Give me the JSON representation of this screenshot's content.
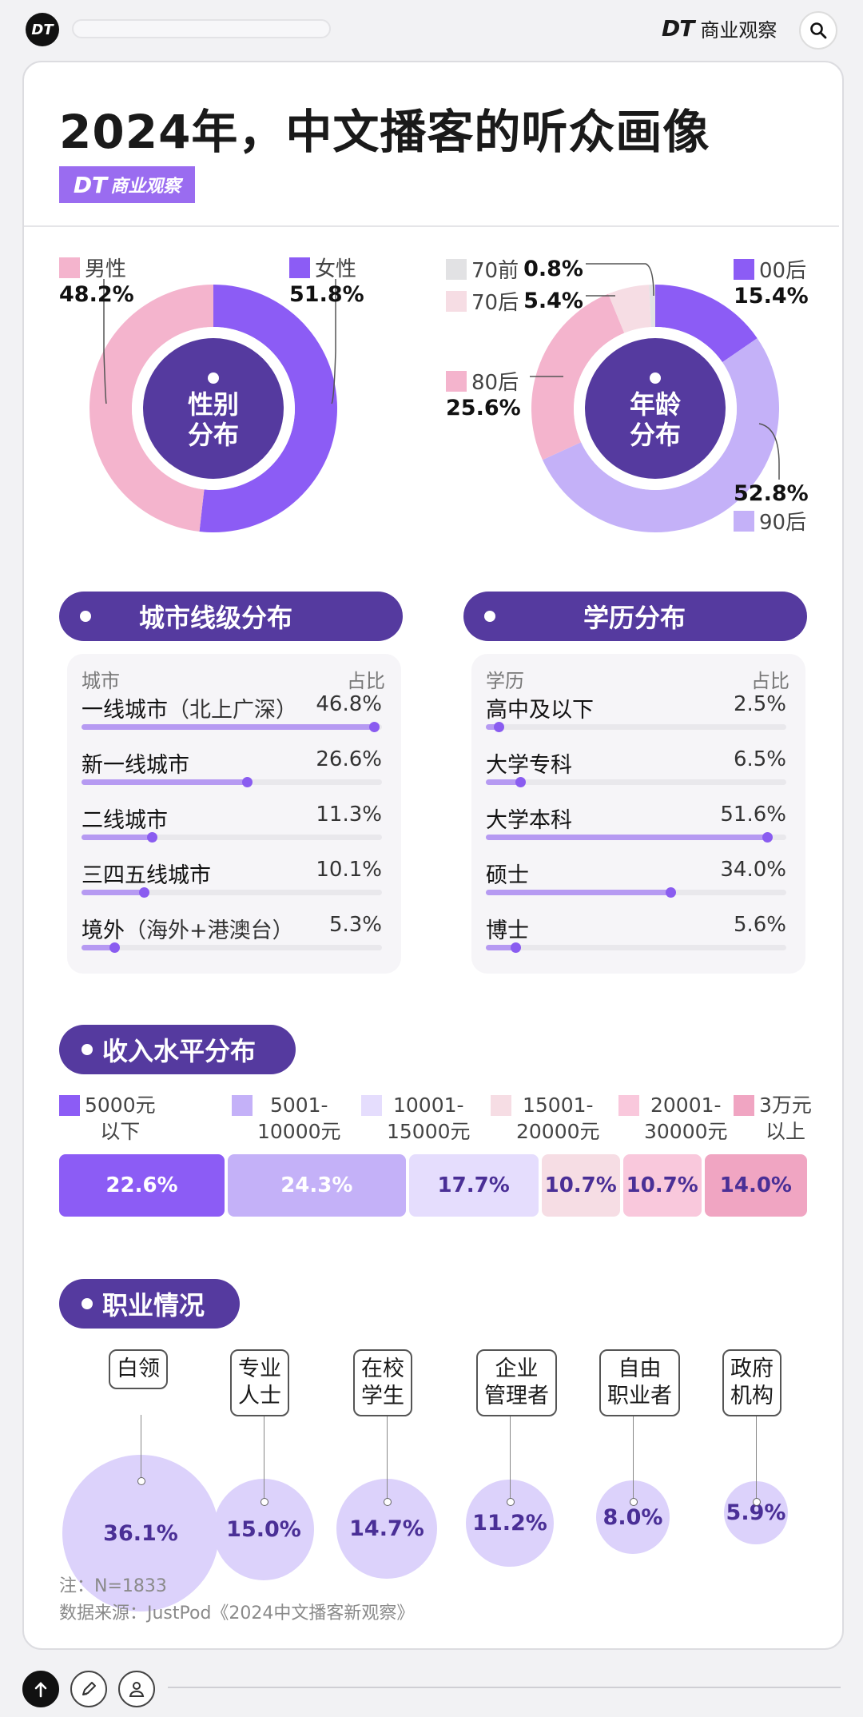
{
  "topbar": {
    "app_badge": "DT",
    "brand_dt": "DT",
    "brand_name": "商业观察"
  },
  "title": "2024年，中文播客的听众画像",
  "logo": {
    "dt": "DT",
    "name": "商业观察"
  },
  "chart_data": [
    {
      "type": "pie",
      "title": "性别分布",
      "title_lines": [
        "性别",
        "分布"
      ],
      "slices": [
        {
          "label": "女性",
          "value": 51.8,
          "value_label": "51.8%",
          "color": "#8c5cf5"
        },
        {
          "label": "男性",
          "value": 48.2,
          "value_label": "48.2%",
          "color": "#f4b4cd"
        }
      ]
    },
    {
      "type": "pie",
      "title": "年龄分布",
      "title_lines": [
        "年龄",
        "分布"
      ],
      "slices": [
        {
          "label": "00后",
          "value": 15.4,
          "value_label": "15.4%",
          "color": "#8c5cf5"
        },
        {
          "label": "90后",
          "value": 52.8,
          "value_label": "52.8%",
          "color": "#c4b1f8"
        },
        {
          "label": "80后",
          "value": 25.6,
          "value_label": "25.6%",
          "color": "#f4b4cd"
        },
        {
          "label": "70后",
          "value": 5.4,
          "value_label": "5.4%",
          "color": "#f6dde4"
        },
        {
          "label": "70前",
          "value": 0.8,
          "value_label": "0.8%",
          "color": "#e2e2e4"
        }
      ]
    },
    {
      "type": "bar",
      "title": "城市线级分布",
      "header": {
        "left": "城市",
        "right": "占比"
      },
      "categories": [
        "一线城市",
        "新一线城市",
        "二线城市",
        "三四五线城市",
        "境外"
      ],
      "notes": [
        "（北上广深）",
        "",
        "",
        "",
        "（海外+港澳台）"
      ],
      "values": [
        46.8,
        26.6,
        11.3,
        10.1,
        5.3
      ],
      "value_labels": [
        "46.8%",
        "26.6%",
        "11.3%",
        "10.1%",
        "5.3%"
      ],
      "xlim": [
        0,
        50
      ]
    },
    {
      "type": "bar",
      "title": "学历分布",
      "header": {
        "left": "学历",
        "right": "占比"
      },
      "categories": [
        "高中及以下",
        "大学专科",
        "大学本科",
        "硕士",
        "博士"
      ],
      "notes": [
        "",
        "",
        "",
        "",
        ""
      ],
      "values": [
        2.5,
        6.5,
        51.6,
        34.0,
        5.6
      ],
      "value_labels": [
        "2.5%",
        "6.5%",
        "51.6%",
        "34.0%",
        "5.6%"
      ],
      "xlim": [
        0,
        55
      ]
    },
    {
      "type": "bar",
      "stacked": true,
      "title": "收入水平分布",
      "categories": [
        "5000元\n以下",
        "5001-\n10000元",
        "10001-\n15000元",
        "15001-\n20000元",
        "20001-\n30000元",
        "3万元\n以上"
      ],
      "values": [
        22.6,
        24.3,
        17.7,
        10.7,
        10.7,
        14.0
      ],
      "value_labels": [
        "22.6%",
        "24.3%",
        "17.7%",
        "10.7%",
        "10.7%",
        "14.0%"
      ],
      "colors": [
        "#8c5cf5",
        "#c4b1f8",
        "#e5ddfd",
        "#f6dde4",
        "#f9c8dc",
        "#f0a5c2"
      ]
    },
    {
      "type": "scatter",
      "title": "职业情况",
      "categories": [
        "白领",
        "专业\n人士",
        "在校\n学生",
        "企业\n管理者",
        "自由\n职业者",
        "政府\n机构"
      ],
      "values": [
        36.1,
        15.0,
        14.7,
        11.2,
        8.0,
        5.9
      ],
      "value_labels": [
        "36.1%",
        "15.0%",
        "14.7%",
        "11.2%",
        "8.0%",
        "5.9%"
      ]
    }
  ],
  "notes": {
    "sample": "注：N=1833",
    "source": "数据来源：JustPod《2024中文播客新观察》"
  },
  "colors": {
    "accent": "#553a9f",
    "purple": "#8c5cf5",
    "light_purple": "#c4b1f8",
    "pink": "#f4b4cd"
  },
  "icons": [
    "search-icon",
    "upload-icon",
    "edit-icon",
    "user-icon"
  ]
}
